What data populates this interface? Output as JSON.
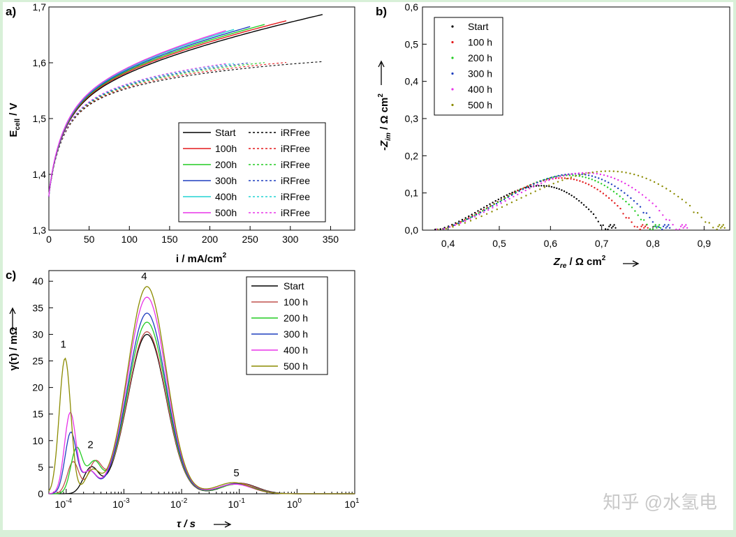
{
  "chart_data": [
    {
      "id": "a",
      "type": "line",
      "panel_label": "a)",
      "xlabel": "i / mA/cm",
      "xlabel_sup": "2",
      "ylabel": "E",
      "ylabel_sub": "cell",
      "ylabel_tail": " / V",
      "xlim": [
        0,
        380
      ],
      "ylim": [
        1.3,
        1.7
      ],
      "xticks": [
        0,
        50,
        100,
        150,
        200,
        250,
        300,
        350
      ],
      "xtick_labels": [
        "0",
        "50",
        "100",
        "150",
        "200",
        "250",
        "300",
        "350"
      ],
      "yticks": [
        1.3,
        1.4,
        1.5,
        1.6,
        1.7
      ],
      "ytick_labels": [
        "1,3",
        "1,4",
        "1,5",
        "1,6",
        "1,7"
      ],
      "legend_position": "bottom-right",
      "series": [
        {
          "name": "Start",
          "ir_label": "iRFree",
          "color": "#000000",
          "imax": 340,
          "a": 0.0118,
          "ir_imax": 340,
          "ir_a": 0.0098
        },
        {
          "name": "100h",
          "ir_label": "iRFree",
          "color": "#e41a1c",
          "imax": 295,
          "a": 0.0128,
          "ir_imax": 295,
          "ir_a": 0.0106
        },
        {
          "name": "200h",
          "ir_label": "iRFree",
          "color": "#22cc22",
          "imax": 268,
          "a": 0.0136,
          "ir_imax": 268,
          "ir_a": 0.0114
        },
        {
          "name": "300h",
          "ir_label": "iRFree",
          "color": "#1f3fbf",
          "imax": 250,
          "a": 0.0144,
          "ir_imax": 250,
          "ir_a": 0.012
        },
        {
          "name": "400h",
          "ir_label": "iRFree",
          "color": "#22d3d3",
          "imax": 230,
          "a": 0.0152,
          "ir_imax": 230,
          "ir_a": 0.0126
        },
        {
          "name": "500h",
          "ir_label": "iRFree",
          "color": "#e833e8",
          "imax": 220,
          "a": 0.0158,
          "ir_imax": 220,
          "ir_a": 0.013
        }
      ]
    },
    {
      "id": "b",
      "type": "scatter",
      "panel_label": "b)",
      "xlabel": "Z",
      "xlabel_sub": "re",
      "xlabel_tail": " / Ω cm",
      "xlabel_sup": "2",
      "ylabel": "-Z",
      "ylabel_sub": "im",
      "ylabel_tail": " / Ω cm",
      "ylabel_sup": "2",
      "xlim": [
        0.35,
        0.95
      ],
      "ylim": [
        0.0,
        0.6
      ],
      "xticks": [
        0.4,
        0.5,
        0.6,
        0.7,
        0.8,
        0.9
      ],
      "xtick_labels": [
        "0,4",
        "0,5",
        "0,6",
        "0,7",
        "0,8",
        "0,9"
      ],
      "yticks": [
        0.0,
        0.1,
        0.2,
        0.3,
        0.4,
        0.5,
        0.6
      ],
      "ytick_labels": [
        "0,0",
        "0,1",
        "0,2",
        "0,3",
        "0,4",
        "0,5",
        "0,6"
      ],
      "legend_position": "top-left",
      "series": [
        {
          "name": "Start",
          "color": "#000000",
          "x_start": 0.375,
          "x_end": 0.712,
          "peak": 0.128
        },
        {
          "name": "100 h",
          "color": "#e41a1c",
          "x_start": 0.378,
          "x_end": 0.775,
          "peak": 0.15
        },
        {
          "name": "200 h",
          "color": "#22cc22",
          "x_start": 0.378,
          "x_end": 0.8,
          "peak": 0.158
        },
        {
          "name": "300 h",
          "color": "#1f3fbf",
          "x_start": 0.378,
          "x_end": 0.818,
          "peak": 0.162
        },
        {
          "name": "400 h",
          "color": "#e833e8",
          "x_start": 0.378,
          "x_end": 0.852,
          "peak": 0.165
        },
        {
          "name": "500 h",
          "color": "#8b8b00",
          "x_start": 0.38,
          "x_end": 0.925,
          "peak": 0.17
        }
      ]
    },
    {
      "id": "c",
      "type": "line",
      "panel_label": "c)",
      "xlabel": "τ / s",
      "ylabel": "γ(τ) / mΩ",
      "xscale": "log",
      "xlim_log10": [
        -4.3,
        1
      ],
      "ylim": [
        0,
        42
      ],
      "xticks_log10": [
        -4,
        -3,
        -2,
        -1,
        0,
        1
      ],
      "xtick_labels": [
        "10",
        "10",
        "10",
        "10",
        "10",
        "10"
      ],
      "xtick_sups": [
        "-4",
        "-3",
        "-2",
        "-1",
        "0",
        "1"
      ],
      "yticks": [
        0,
        5,
        10,
        15,
        20,
        25,
        30,
        35,
        40
      ],
      "ytick_labels": [
        "0",
        "5",
        "10",
        "15",
        "20",
        "25",
        "30",
        "35",
        "40"
      ],
      "legend_position": "top-right",
      "peak_labels": [
        {
          "text": "1",
          "x_log10": -4.05,
          "y": 27.5
        },
        {
          "text": "2",
          "x_log10": -3.58,
          "y": 8.6
        },
        {
          "text": "4",
          "x_log10": -2.65,
          "y": 40.3
        },
        {
          "text": "5",
          "x_log10": -1.05,
          "y": 3.3
        }
      ],
      "series": [
        {
          "name": "Start",
          "color": "#000000",
          "p1": 1.0,
          "p1c": -3.68,
          "p2": 4.2,
          "p2c": -3.55,
          "p4": 30.0,
          "p5": 2.0
        },
        {
          "name": "100 h",
          "color": "#c0504d",
          "p1": 6.0,
          "p1c": -3.88,
          "p2": 5.5,
          "p2c": -3.5,
          "p4": 30.5,
          "p5": 2.0
        },
        {
          "name": "200 h",
          "color": "#22cc22",
          "p1": 8.5,
          "p1c": -3.82,
          "p2": 5.5,
          "p2c": -3.52,
          "p4": 32.3,
          "p5": 1.8
        },
        {
          "name": "300 h",
          "color": "#1f3fbf",
          "p1": 11.5,
          "p1c": -3.92,
          "p2": 4.0,
          "p2c": -3.6,
          "p4": 34.0,
          "p5": 1.9
        },
        {
          "name": "400 h",
          "color": "#e833e8",
          "p1": 15.2,
          "p1c": -3.93,
          "p2": 4.0,
          "p2c": -3.6,
          "p4": 37.0,
          "p5": 1.8
        },
        {
          "name": "500 h",
          "color": "#8b8b00",
          "p1": 25.5,
          "p1c": -4.02,
          "p2": 4.0,
          "p2c": -3.55,
          "p4": 39.0,
          "p5": 2.1
        }
      ]
    }
  ],
  "watermark": "知乎 @水氢电"
}
